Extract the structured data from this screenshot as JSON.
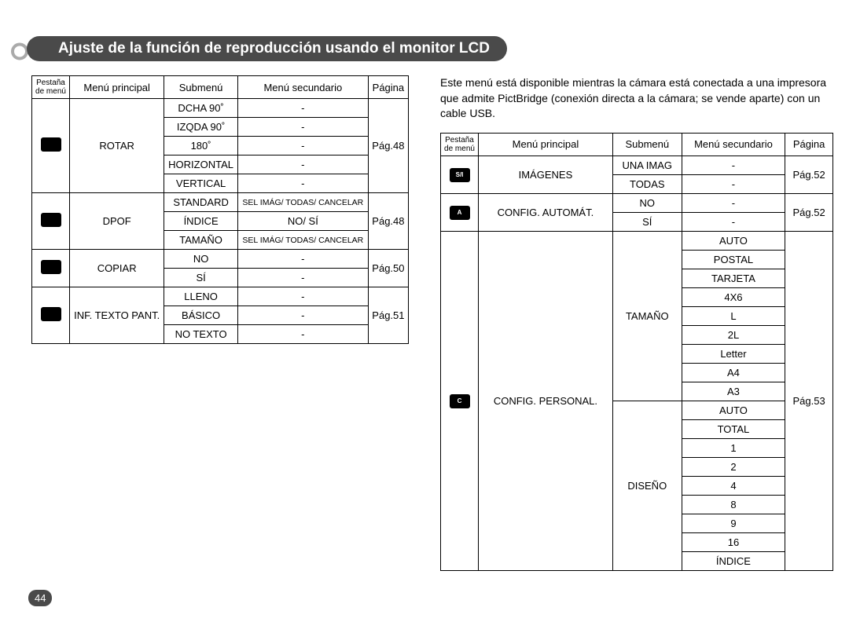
{
  "pageNumber": "44",
  "title": "Ajuste de la función de reproducción usando el monitor LCD",
  "intro": "Este menú está disponible mientras la cámara está conectada a una impresora que admite PictBridge (conexión directa a la cámara; se vende aparte) con un cable USB.",
  "headers": {
    "tab": "Pestaña de menú",
    "main": "Menú principal",
    "sub": "Submenú",
    "secondary": "Menú secundario",
    "page": "Página"
  },
  "left": {
    "groups": [
      {
        "icon": "rotate",
        "main": "ROTAR",
        "page": "Pág.48",
        "rows": [
          {
            "sub": "DCHA 90˚",
            "sec": "-"
          },
          {
            "sub": "IZQDA 90˚",
            "sec": "-"
          },
          {
            "sub": "180˚",
            "sec": "-"
          },
          {
            "sub": "HORIZONTAL",
            "sec": "-"
          },
          {
            "sub": "VERTICAL",
            "sec": "-"
          }
        ]
      },
      {
        "icon": "dpof",
        "main": "DPOF",
        "page": "Pág.48",
        "rows": [
          {
            "sub": "STANDARD",
            "sec": "SEL IMÁG/ TODAS/ CANCELAR",
            "small": true
          },
          {
            "sub": "ÍNDICE",
            "sec": "NO/ SÍ"
          },
          {
            "sub": "TAMAÑO",
            "sec": "SEL IMÁG/ TODAS/ CANCELAR",
            "small": true
          }
        ]
      },
      {
        "icon": "copy",
        "main": "COPIAR",
        "page": "Pág.50",
        "rows": [
          {
            "sub": "NO",
            "sec": "-"
          },
          {
            "sub": "SÍ",
            "sec": "-"
          }
        ]
      },
      {
        "icon": "osd",
        "main": "INF. TEXTO PANT.",
        "page": "Pág.51",
        "rows": [
          {
            "sub": "LLENO",
            "sec": "-"
          },
          {
            "sub": "BÁSICO",
            "sec": "-"
          },
          {
            "sub": "NO TEXTO",
            "sec": "-"
          }
        ]
      }
    ]
  },
  "right": {
    "groups": [
      {
        "icon": "S/I",
        "main": "IMÁGENES",
        "page": "Pág.52",
        "subs": [
          {
            "name": "UNA IMAG",
            "secs": [
              "-"
            ]
          },
          {
            "name": "TODAS",
            "secs": [
              "-"
            ]
          }
        ]
      },
      {
        "icon": "A",
        "main": "CONFIG. AUTOMÁT.",
        "page": "Pág.52",
        "subs": [
          {
            "name": "NO",
            "secs": [
              "-"
            ]
          },
          {
            "name": "SÍ",
            "secs": [
              "-"
            ]
          }
        ]
      },
      {
        "icon": "C",
        "main": "CONFIG. PERSONAL.",
        "page": "Pág.53",
        "subs": [
          {
            "name": "TAMAÑO",
            "secs": [
              "AUTO",
              "POSTAL",
              "TARJETA",
              "4X6",
              "L",
              "2L",
              "Letter",
              "A4",
              "A3"
            ]
          },
          {
            "name": "DISEÑO",
            "secs": [
              "AUTO",
              "TOTAL",
              "1",
              "2",
              "4",
              "8",
              "9",
              "16",
              "ÍNDICE"
            ]
          }
        ]
      }
    ]
  }
}
